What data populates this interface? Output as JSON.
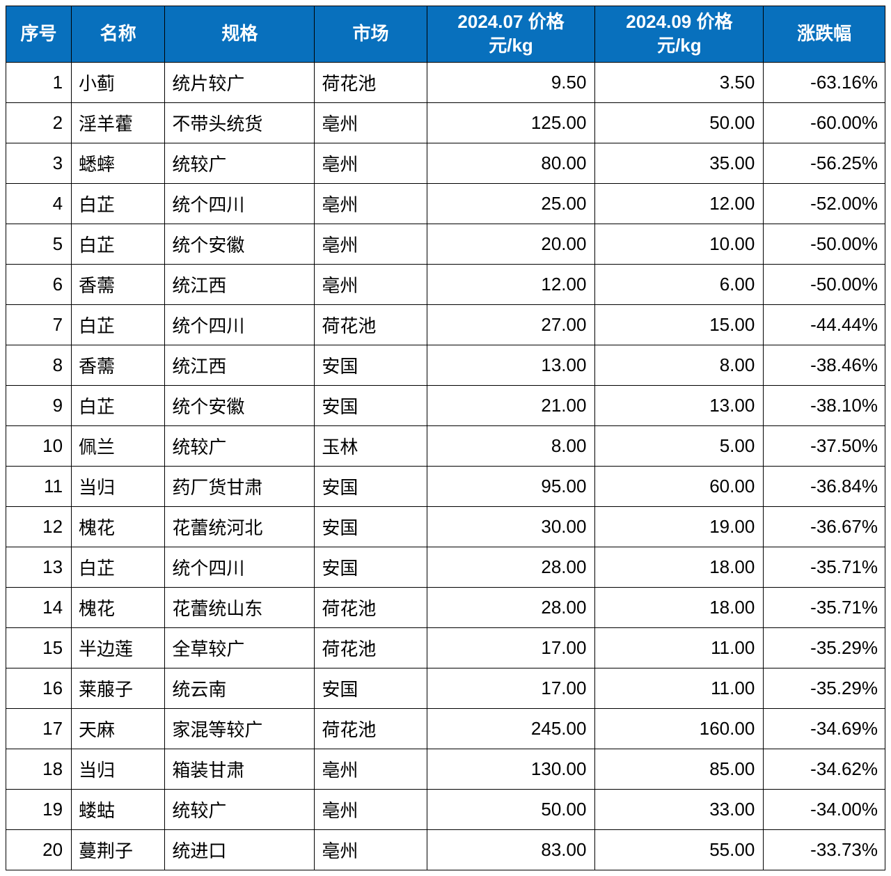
{
  "table": {
    "header_bg": "#0870bd",
    "header_fg": "#ffffff",
    "border_color": "#000000",
    "columns": [
      {
        "key": "idx",
        "label": "序号",
        "align": "right",
        "width": "7%"
      },
      {
        "key": "name",
        "label": "名称",
        "align": "left",
        "width": "10%"
      },
      {
        "key": "spec",
        "label": "规格",
        "align": "left",
        "width": "16%"
      },
      {
        "key": "market",
        "label": "市场",
        "align": "left",
        "width": "12%"
      },
      {
        "key": "price07",
        "label": "2024.07 价格\n元/kg",
        "align": "right",
        "width": "18%"
      },
      {
        "key": "price09",
        "label": "2024.09 价格\n元/kg",
        "align": "right",
        "width": "18%"
      },
      {
        "key": "change",
        "label": "涨跌幅",
        "align": "right",
        "width": "13%"
      }
    ],
    "rows": [
      {
        "idx": "1",
        "name": "小蓟",
        "spec": "统片较广",
        "market": "荷花池",
        "price07": "9.50",
        "price09": "3.50",
        "change": "-63.16%"
      },
      {
        "idx": "2",
        "name": "淫羊藿",
        "spec": "不带头统货",
        "market": "亳州",
        "price07": "125.00",
        "price09": "50.00",
        "change": "-60.00%"
      },
      {
        "idx": "3",
        "name": "蟋蟀",
        "spec": "统较广",
        "market": "亳州",
        "price07": "80.00",
        "price09": "35.00",
        "change": "-56.25%"
      },
      {
        "idx": "4",
        "name": "白芷",
        "spec": "统个四川",
        "market": "亳州",
        "price07": "25.00",
        "price09": "12.00",
        "change": "-52.00%"
      },
      {
        "idx": "5",
        "name": "白芷",
        "spec": "统个安徽",
        "market": "亳州",
        "price07": "20.00",
        "price09": "10.00",
        "change": "-50.00%"
      },
      {
        "idx": "6",
        "name": "香薷",
        "spec": "统江西",
        "market": "亳州",
        "price07": "12.00",
        "price09": "6.00",
        "change": "-50.00%"
      },
      {
        "idx": "7",
        "name": "白芷",
        "spec": "统个四川",
        "market": "荷花池",
        "price07": "27.00",
        "price09": "15.00",
        "change": "-44.44%"
      },
      {
        "idx": "8",
        "name": "香薷",
        "spec": "统江西",
        "market": "安国",
        "price07": "13.00",
        "price09": "8.00",
        "change": "-38.46%"
      },
      {
        "idx": "9",
        "name": "白芷",
        "spec": "统个安徽",
        "market": "安国",
        "price07": "21.00",
        "price09": "13.00",
        "change": "-38.10%"
      },
      {
        "idx": "10",
        "name": "佩兰",
        "spec": "统较广",
        "market": "玉林",
        "price07": "8.00",
        "price09": "5.00",
        "change": "-37.50%"
      },
      {
        "idx": "11",
        "name": "当归",
        "spec": "药厂货甘肃",
        "market": "安国",
        "price07": "95.00",
        "price09": "60.00",
        "change": "-36.84%"
      },
      {
        "idx": "12",
        "name": "槐花",
        "spec": "花蕾统河北",
        "market": "安国",
        "price07": "30.00",
        "price09": "19.00",
        "change": "-36.67%"
      },
      {
        "idx": "13",
        "name": "白芷",
        "spec": "统个四川",
        "market": "安国",
        "price07": "28.00",
        "price09": "18.00",
        "change": "-35.71%"
      },
      {
        "idx": "14",
        "name": "槐花",
        "spec": "花蕾统山东",
        "market": "荷花池",
        "price07": "28.00",
        "price09": "18.00",
        "change": "-35.71%"
      },
      {
        "idx": "15",
        "name": "半边莲",
        "spec": "全草较广",
        "market": "荷花池",
        "price07": "17.00",
        "price09": "11.00",
        "change": "-35.29%"
      },
      {
        "idx": "16",
        "name": "莱菔子",
        "spec": "统云南",
        "market": "安国",
        "price07": "17.00",
        "price09": "11.00",
        "change": "-35.29%"
      },
      {
        "idx": "17",
        "name": "天麻",
        "spec": "家混等较广",
        "market": "荷花池",
        "price07": "245.00",
        "price09": "160.00",
        "change": "-34.69%"
      },
      {
        "idx": "18",
        "name": "当归",
        "spec": "箱装甘肃",
        "market": "亳州",
        "price07": "130.00",
        "price09": "85.00",
        "change": "-34.62%"
      },
      {
        "idx": "19",
        "name": "蝼蛄",
        "spec": "统较广",
        "market": "亳州",
        "price07": "50.00",
        "price09": "33.00",
        "change": "-34.00%"
      },
      {
        "idx": "20",
        "name": "蔓荆子",
        "spec": "统进口",
        "market": "亳州",
        "price07": "83.00",
        "price09": "55.00",
        "change": "-33.73%"
      }
    ]
  }
}
